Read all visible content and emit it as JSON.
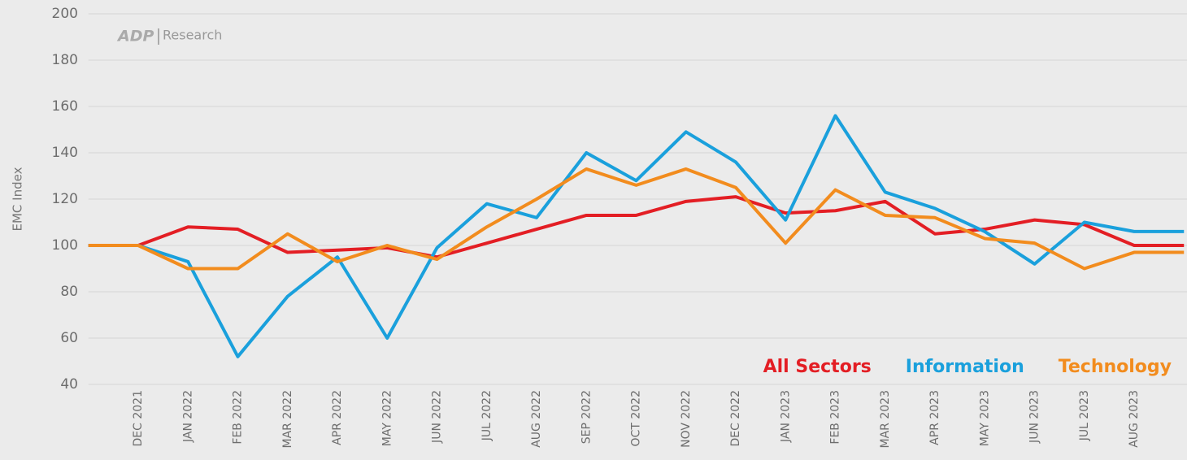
{
  "chart_data": {
    "type": "line",
    "y_label": "EMC Index",
    "logo_brand": "ADP",
    "logo_text": "Research",
    "categories": [
      null,
      "DEC 2021",
      "JAN 2022",
      "FEB 2022",
      "MAR 2022",
      "APR 2022",
      "MAY 2022",
      "JUN 2022",
      "JUL 2022",
      "AUG 2022",
      "SEP 2022",
      "OCT 2022",
      "NOV 2022",
      "DEC 2022",
      "JAN 2023",
      "FEB 2023",
      "MAR 2023",
      "APR 2023",
      "MAY 2023",
      "JUN 2023",
      "JUL 2023",
      "AUG 2023",
      null
    ],
    "series": [
      {
        "name": "All Sectors",
        "color": "#e31e24",
        "values": [
          100,
          100,
          108,
          107,
          97,
          98,
          99,
          95,
          101,
          107,
          113,
          113,
          119,
          121,
          114,
          115,
          119,
          105,
          107,
          111,
          109,
          100,
          100
        ]
      },
      {
        "name": "Information",
        "color": "#1aa0dc",
        "values": [
          100,
          100,
          93,
          52,
          78,
          95,
          60,
          99,
          118,
          112,
          140,
          128,
          149,
          136,
          111,
          156,
          123,
          116,
          106,
          92,
          110,
          106,
          106
        ]
      },
      {
        "name": "Technology",
        "color": "#f28c1e",
        "values": [
          100,
          100,
          90,
          90,
          105,
          93,
          100,
          94,
          108,
          120,
          133,
          126,
          133,
          125,
          101,
          124,
          113,
          112,
          103,
          101,
          90,
          97,
          97
        ]
      }
    ],
    "ylim": [
      40,
      200
    ],
    "yticks": [
      40,
      60,
      80,
      100,
      120,
      140,
      160,
      180,
      200
    ],
    "grid": true,
    "legend": "lower right"
  }
}
